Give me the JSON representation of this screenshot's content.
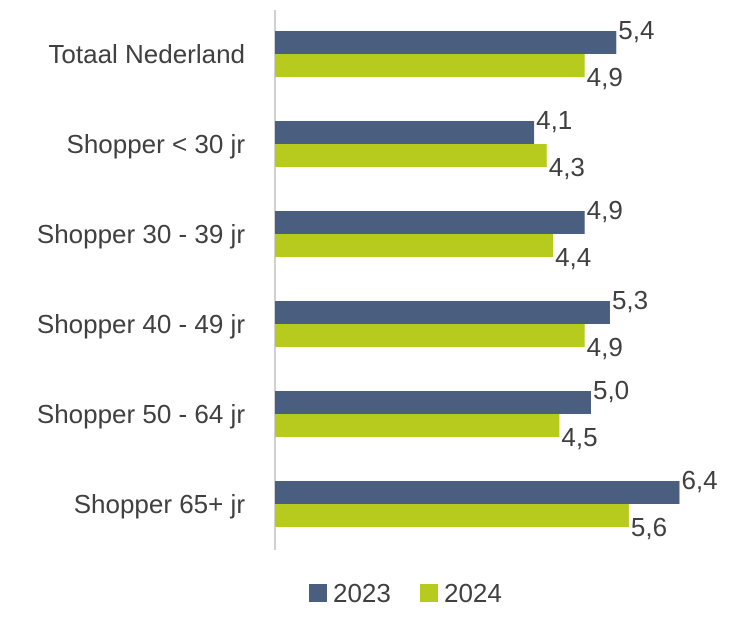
{
  "chart_data": {
    "type": "bar",
    "orientation": "horizontal",
    "categories": [
      "Totaal Nederland",
      "Shopper < 30 jr",
      "Shopper 30 - 39 jr",
      "Shopper 40 - 49 jr",
      "Shopper 50 - 64 jr",
      "Shopper 65+ jr"
    ],
    "series": [
      {
        "name": "2023",
        "color": "#4a5f80",
        "values": [
          5.4,
          4.1,
          4.9,
          5.3,
          5.0,
          6.4
        ],
        "labels": [
          "5,4",
          "4,1",
          "4,9",
          "5,3",
          "5,0",
          "6,4"
        ]
      },
      {
        "name": "2024",
        "color": "#b7cb1f",
        "values": [
          4.9,
          4.3,
          4.4,
          4.9,
          4.5,
          5.6
        ],
        "labels": [
          "4,9",
          "4,3",
          "4,4",
          "4,9",
          "4,5",
          "5,6"
        ]
      }
    ],
    "title": "",
    "xlabel": "",
    "ylabel": "",
    "xlim": [
      0,
      6.4
    ],
    "grid": false,
    "legend_position": "bottom"
  }
}
